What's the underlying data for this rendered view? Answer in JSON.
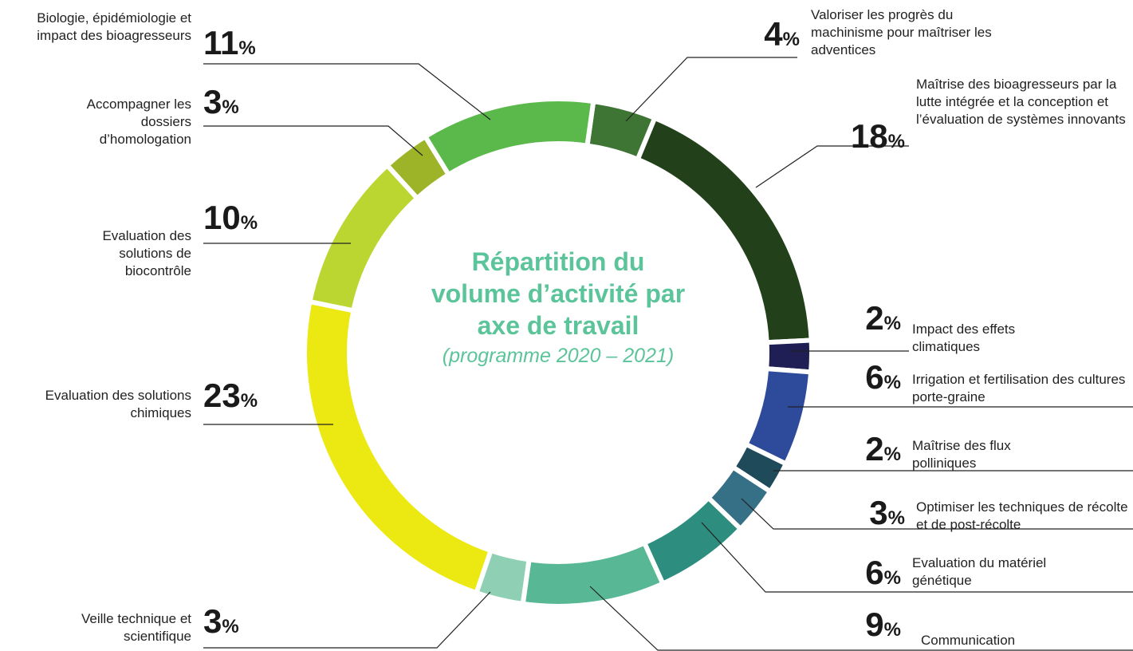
{
  "chart_data": {
    "type": "donut",
    "title": "Répartition du volume d’activité par axe de travail",
    "subtitle": "(programme 2020 – 2021)",
    "categories": [
      "Valoriser les progrès du machinisme pour maîtriser les adventices",
      "Maîtrise des bioagresseurs par la lutte intégrée et la conception et l’évaluation de systèmes innovants",
      "Impact des effets climatiques",
      "Irrigation et fertilisation des cultures porte-graine",
      "Maîtrise des flux polliniques",
      "Optimiser les techniques de récolte et de post-récolte",
      "Evaluation du matériel génétique",
      "Communication",
      "Veille technique et scientifique",
      "Evaluation des solutions chimiques",
      "Evaluation des solutions de biocontrôle",
      "Accompagner les dossiers d’homologation",
      "Biologie, épidémiologie et impact des bioagresseurs"
    ],
    "values": [
      4,
      18,
      2,
      6,
      2,
      3,
      6,
      9,
      3,
      23,
      10,
      3,
      11
    ],
    "value_labels": [
      "4%",
      "18%",
      "2%",
      "6%",
      "2%",
      "3%",
      "6%",
      "9%",
      "3%",
      "23%",
      "10%",
      "3%",
      "11%"
    ],
    "colors": [
      "#3e7535",
      "#22401a",
      "#1f1f55",
      "#2e4a9a",
      "#1e4a5a",
      "#357087",
      "#2d8d7e",
      "#58b896",
      "#8fd0b5",
      "#ece812",
      "#bcd631",
      "#9db428",
      "#5ab94a"
    ]
  }
}
